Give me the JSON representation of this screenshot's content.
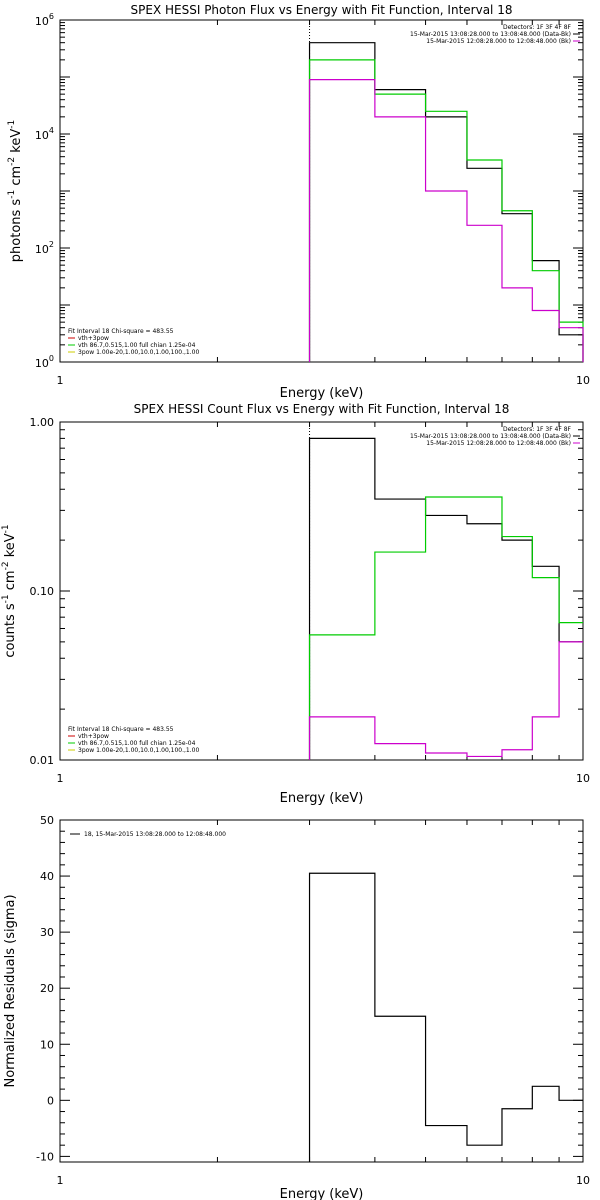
{
  "chart_data": [
    {
      "type": "line",
      "title": "SPEX HESSI Photon Flux vs Energy with Fit Function, Interval 18",
      "xlabel": "Energy (keV)",
      "ylabel_base": "photons s",
      "ylabel_parts": [
        "photons s",
        "-1",
        " cm",
        "-2",
        " keV",
        "-1"
      ],
      "xscale": "log",
      "yscale": "log",
      "xlim": [
        1,
        10
      ],
      "ylim": [
        1,
        1000000
      ],
      "x_ticks": [
        {
          "value": 1,
          "label": "1"
        },
        {
          "value": 10,
          "label": "10"
        }
      ],
      "y_ticks": [
        {
          "value": 1,
          "base": "10",
          "exp": "0"
        },
        {
          "value": 100,
          "base": "10",
          "exp": "2"
        },
        {
          "value": 10000,
          "base": "10",
          "exp": "4"
        },
        {
          "value": 1000000,
          "base": "10",
          "exp": "6"
        }
      ],
      "legend_top_right": [
        {
          "text": "Detectors: 1F 3F 4F 8F",
          "color": null
        },
        {
          "text": "15-Mar-2015 13:08:28.000 to 13:08:48.000 (Data-Bk)",
          "color": "#000000"
        },
        {
          "text": "15-Mar-2015 12:08:28.000 to 12:08:48.000 (Bk)",
          "color": "#cc00cc"
        }
      ],
      "legend_bottom_left": [
        {
          "text": "Fit Interval 18   Chi-square = 483.55",
          "color": null
        },
        {
          "text": "vth+3pow",
          "color": "#cc0000"
        },
        {
          "text": "vth 86.7,0.515,1.00  full chian 1.25e-04",
          "color": "#00cc00"
        },
        {
          "text": "3pow 1.00e-20,1.00,10.0,1.00,100.,1.00",
          "color": "#cccc00"
        }
      ],
      "vline_x": 3.0,
      "series": [
        {
          "color": "#000000",
          "edges": [
            3,
            4,
            5,
            6,
            7,
            8,
            9,
            10
          ],
          "values": [
            400000,
            60000,
            20000,
            2500,
            400,
            60,
            3,
            1
          ]
        },
        {
          "color": "#00cc00",
          "edges": [
            3,
            4,
            5,
            6,
            7,
            8,
            9,
            10
          ],
          "values": [
            200000,
            50000,
            25000,
            3500,
            450,
            40,
            5,
            1
          ]
        },
        {
          "color": "#cc00cc",
          "edges": [
            3,
            4,
            5,
            6,
            7,
            8,
            9,
            10
          ],
          "values": [
            90000,
            20000,
            1000,
            250,
            20,
            8,
            4,
            1
          ]
        }
      ]
    },
    {
      "type": "line",
      "title": "SPEX HESSI Count Flux vs Energy with Fit Function, Interval 18",
      "xlabel": "Energy (keV)",
      "ylabel_parts": [
        "counts s",
        "-1",
        " cm",
        "-2",
        " keV",
        "-1"
      ],
      "xscale": "log",
      "yscale": "log",
      "xlim": [
        1,
        10
      ],
      "ylim": [
        0.01,
        1.0
      ],
      "x_ticks": [
        {
          "value": 1,
          "label": "1"
        },
        {
          "value": 10,
          "label": "10"
        }
      ],
      "y_ticks": [
        {
          "value": 0.01,
          "label": "0.01"
        },
        {
          "value": 0.1,
          "label": "0.10"
        },
        {
          "value": 1.0,
          "label": "1.00"
        }
      ],
      "legend_top_right": [
        {
          "text": "Detectors: 1F 3F 4F 8F",
          "color": null
        },
        {
          "text": "15-Mar-2015 13:08:28.000 to 13:08:48.000 (Data-Bk)",
          "color": "#000000"
        },
        {
          "text": "15-Mar-2015 12:08:28.000 to 12:08:48.000 (Bk)",
          "color": "#cc00cc"
        }
      ],
      "legend_bottom_left": [
        {
          "text": "Fit Interval 18   Chi-square = 483.55",
          "color": null
        },
        {
          "text": "vth+3pow",
          "color": "#cc0000"
        },
        {
          "text": "vth 86.7,0.515,1.00  full chian 1.25e-04",
          "color": "#00cc00"
        },
        {
          "text": "3pow 1.00e-20,1.00,10.0,1.00,100.,1.00",
          "color": "#cccc00"
        }
      ],
      "vline_x": 3.0,
      "series": [
        {
          "color": "#000000",
          "edges": [
            3,
            4,
            5,
            6,
            7,
            8,
            9,
            10
          ],
          "values": [
            0.8,
            0.35,
            0.28,
            0.25,
            0.2,
            0.14,
            0.05
          ]
        },
        {
          "color": "#00cc00",
          "edges": [
            3,
            4,
            5,
            6,
            7,
            8,
            9,
            10
          ],
          "values": [
            0.055,
            0.17,
            0.36,
            0.36,
            0.21,
            0.12,
            0.065
          ]
        },
        {
          "color": "#cc00cc",
          "edges": [
            3,
            4,
            5,
            6,
            7,
            8,
            9,
            10
          ],
          "values": [
            0.018,
            0.0125,
            0.011,
            0.0105,
            0.0115,
            0.018,
            0.05
          ]
        }
      ]
    },
    {
      "type": "line",
      "title": "",
      "xlabel": "Energy (keV)",
      "ylabel": "Normalized Residuals (sigma)",
      "xscale": "log",
      "yscale": "linear",
      "xlim": [
        1,
        10
      ],
      "ylim": [
        -11,
        50
      ],
      "x_ticks": [
        {
          "value": 1,
          "label": "1"
        },
        {
          "value": 10,
          "label": "10"
        }
      ],
      "y_ticks": [
        {
          "value": -10,
          "label": "-10"
        },
        {
          "value": 0,
          "label": "0"
        },
        {
          "value": 10,
          "label": "10"
        },
        {
          "value": 20,
          "label": "20"
        },
        {
          "value": 30,
          "label": "30"
        },
        {
          "value": 40,
          "label": "40"
        },
        {
          "value": 50,
          "label": "50"
        }
      ],
      "legend_top_left": [
        {
          "text": "18, 15-Mar-2015 13:08:28.000 to 12:08:48.000",
          "color": "#000000"
        }
      ],
      "series": [
        {
          "color": "#000000",
          "edges": [
            3,
            4,
            5,
            6,
            7,
            8,
            9,
            10
          ],
          "values": [
            40.5,
            15,
            -4.5,
            -8,
            -1.5,
            2.5,
            0
          ]
        }
      ]
    }
  ]
}
